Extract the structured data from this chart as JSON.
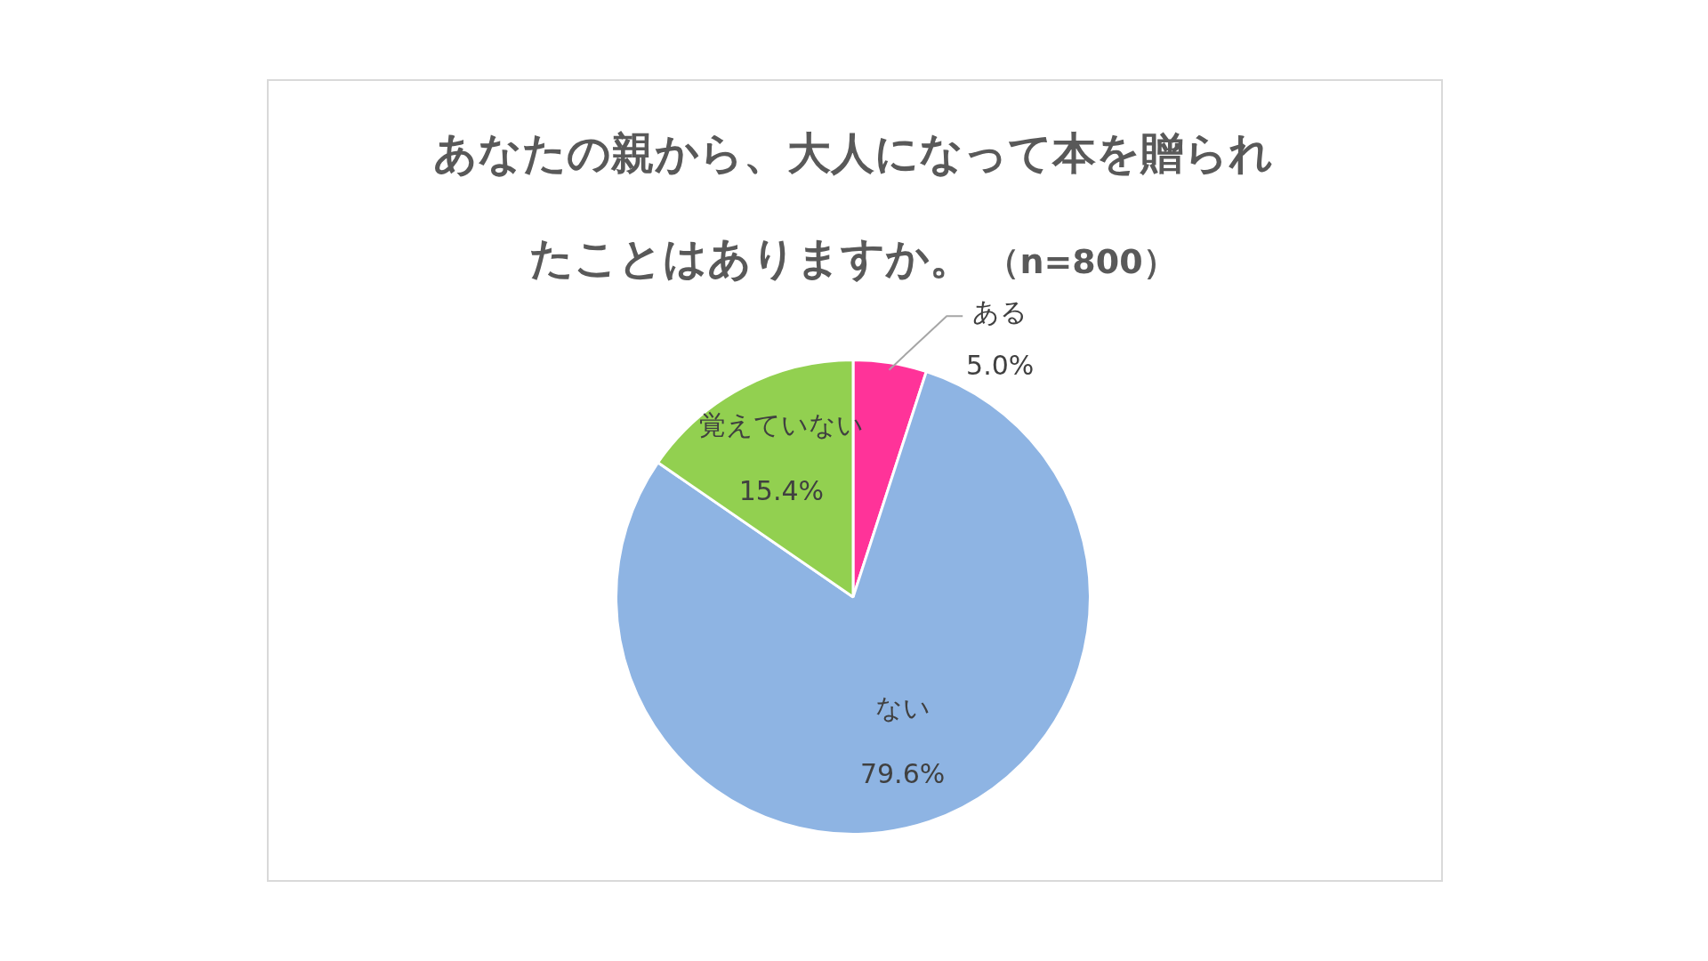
{
  "chart_data": {
    "type": "pie",
    "title": "あなたの親から、大人になって本を贈られたことはありますか。",
    "subtitle": "（n=800）",
    "categories": [
      "ある",
      "ない",
      "覚えていない"
    ],
    "values": [
      5.0,
      79.6,
      15.4
    ],
    "value_labels": [
      "5.0%",
      "79.6%",
      "15.4%"
    ],
    "colors": [
      "#ff3399",
      "#8eb4e3",
      "#92d050"
    ],
    "legend": false
  }
}
